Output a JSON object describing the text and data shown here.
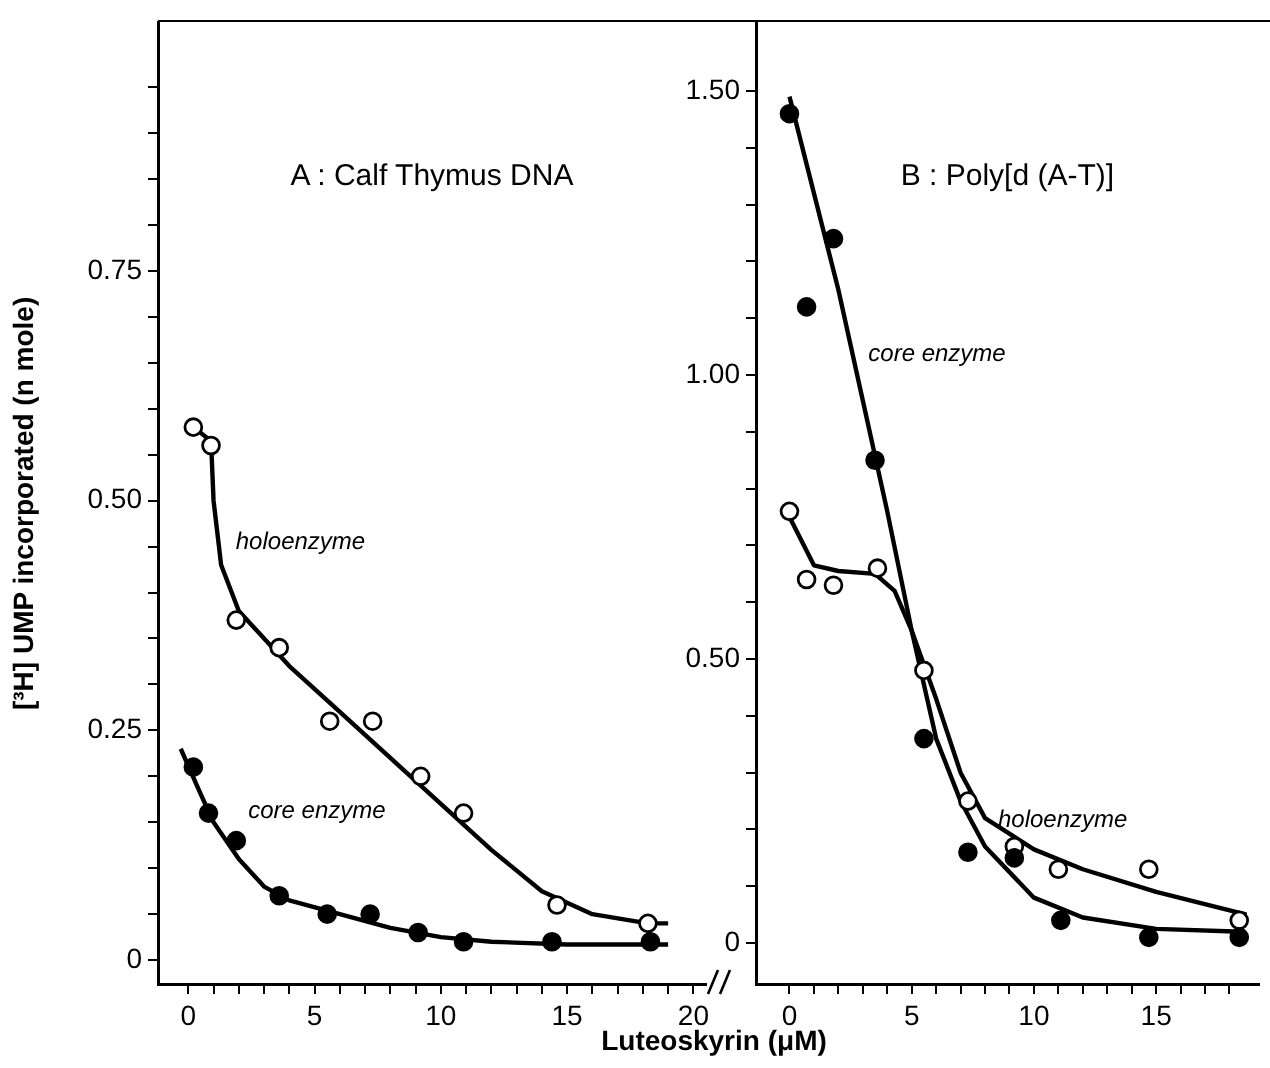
{
  "chart_data": [
    {
      "type": "scatter",
      "title": "A : Calf Thymus DNA",
      "xlabel": "Luteoskyrin (μM)",
      "ylabel": "[³H] UMP incorporated (n mole)",
      "grid": false,
      "legend": false,
      "marker": "circle",
      "xlim": [
        -1.2,
        20.5
      ],
      "ylim": [
        -0.026,
        1.02
      ],
      "xticks": [
        0,
        {
          "value": 1,
          "label": null
        },
        {
          "value": 2,
          "label": null
        },
        {
          "value": 3,
          "label": null
        },
        {
          "value": 4,
          "label": null
        },
        5,
        {
          "value": 6,
          "label": null
        },
        {
          "value": 7,
          "label": null
        },
        {
          "value": 8,
          "label": null
        },
        {
          "value": 9,
          "label": null
        },
        10,
        {
          "value": 11,
          "label": null
        },
        {
          "value": 12,
          "label": null
        },
        {
          "value": 13,
          "label": null
        },
        {
          "value": 14,
          "label": null
        },
        15,
        {
          "value": 16,
          "label": null
        },
        {
          "value": 17,
          "label": null
        },
        {
          "value": 18,
          "label": null
        },
        {
          "value": 19,
          "label": null
        },
        20
      ],
      "yticks": [
        0,
        {
          "value": 0.05,
          "label": null
        },
        {
          "value": 0.1,
          "label": null
        },
        {
          "value": 0.15,
          "label": null
        },
        {
          "value": 0.2,
          "label": null
        },
        {
          "value": 0.25,
          "label": "0.25"
        },
        {
          "value": 0.3,
          "label": null
        },
        {
          "value": 0.35,
          "label": null
        },
        {
          "value": 0.4,
          "label": null
        },
        {
          "value": 0.45,
          "label": null
        },
        {
          "value": 0.5,
          "label": "0.50"
        },
        {
          "value": 0.55,
          "label": null
        },
        {
          "value": 0.6,
          "label": null
        },
        {
          "value": 0.65,
          "label": null
        },
        {
          "value": 0.7,
          "label": null
        },
        {
          "value": 0.75,
          "label": "0.75"
        },
        {
          "value": 0.8,
          "label": null
        },
        {
          "value": 0.85,
          "label": null
        },
        {
          "value": 0.9,
          "label": null
        },
        {
          "value": 0.95,
          "label": null
        }
      ],
      "series": [
        {
          "type": "line",
          "marker": "none",
          "color": "#000000",
          "x": [
            0.2,
            0.9,
            1.0,
            1.3,
            2,
            4,
            6,
            8,
            10,
            12,
            14,
            16,
            18.2,
            19
          ],
          "values": [
            0.58,
            0.565,
            0.5,
            0.43,
            0.38,
            0.32,
            0.27,
            0.22,
            0.17,
            0.12,
            0.075,
            0.05,
            0.04,
            0.04
          ]
        },
        {
          "type": "line",
          "marker": "none",
          "color": "#000000",
          "x": [
            -0.3,
            0.5,
            1,
            2,
            3,
            4,
            6,
            8,
            10,
            12,
            15,
            19
          ],
          "values": [
            0.23,
            0.18,
            0.15,
            0.11,
            0.08,
            0.065,
            0.05,
            0.035,
            0.025,
            0.02,
            0.017,
            0.017
          ]
        },
        {
          "type": "scatter",
          "name": "holoenzyme",
          "color": "#ffffff",
          "x": [
            0.2,
            0.9,
            1.9,
            3.6,
            5.6,
            7.3,
            9.2,
            10.9,
            14.6,
            18.2
          ],
          "values": [
            0.58,
            0.56,
            0.37,
            0.34,
            0.26,
            0.26,
            0.2,
            0.16,
            0.06,
            0.04
          ]
        },
        {
          "type": "scatter",
          "name": "core enzyme",
          "color": "#000000",
          "x": [
            0.2,
            0.8,
            1.9,
            3.6,
            5.5,
            7.2,
            9.1,
            10.9,
            14.4,
            18.3
          ],
          "values": [
            0.21,
            0.16,
            0.13,
            0.07,
            0.05,
            0.05,
            0.03,
            0.02,
            0.02,
            0.02
          ]
        }
      ]
    },
    {
      "type": "scatter",
      "title": "B : Poly[d (A-T)]",
      "grid": false,
      "legend": false,
      "marker": "circle",
      "xlim": [
        -1.37,
        19.2
      ],
      "ylim": [
        -0.072,
        1.62
      ],
      "xticks": [
        0,
        {
          "value": 1,
          "label": null
        },
        {
          "value": 2,
          "label": null
        },
        {
          "value": 3,
          "label": null
        },
        {
          "value": 4,
          "label": null
        },
        5,
        {
          "value": 6,
          "label": null
        },
        {
          "value": 7,
          "label": null
        },
        {
          "value": 8,
          "label": null
        },
        {
          "value": 9,
          "label": null
        },
        10,
        {
          "value": 11,
          "label": null
        },
        {
          "value": 12,
          "label": null
        },
        {
          "value": 13,
          "label": null
        },
        {
          "value": 14,
          "label": null
        },
        15,
        {
          "value": 16,
          "label": null
        },
        {
          "value": 17,
          "label": null
        },
        {
          "value": 18,
          "label": null
        }
      ],
      "yticks": [
        0,
        {
          "value": 0.1,
          "label": null
        },
        {
          "value": 0.2,
          "label": null
        },
        {
          "value": 0.3,
          "label": null
        },
        {
          "value": 0.4,
          "label": null
        },
        {
          "value": 0.5,
          "label": "0.50"
        },
        {
          "value": 0.6,
          "label": null
        },
        {
          "value": 0.7,
          "label": null
        },
        {
          "value": 0.8,
          "label": null
        },
        {
          "value": 0.9,
          "label": null
        },
        {
          "value": 1,
          "label": "1.00"
        },
        {
          "value": 1.1,
          "label": null
        },
        {
          "value": 1.2,
          "label": null
        },
        {
          "value": 1.3,
          "label": null
        },
        {
          "value": 1.4,
          "label": null
        },
        {
          "value": 1.5,
          "label": "1.50"
        }
      ],
      "series": [
        {
          "type": "line",
          "marker": "none",
          "color": "#000000",
          "x": [
            0,
            2,
            4,
            5,
            6,
            7,
            8,
            10,
            12,
            15,
            18.5
          ],
          "values": [
            1.49,
            1.15,
            0.76,
            0.55,
            0.36,
            0.25,
            0.17,
            0.08,
            0.045,
            0.025,
            0.02
          ]
        },
        {
          "type": "line",
          "marker": "none",
          "color": "#000000",
          "x": [
            0,
            1,
            2,
            3.5,
            4.3,
            5,
            6,
            7,
            8,
            10,
            12,
            15,
            18.7
          ],
          "values": [
            0.75,
            0.665,
            0.655,
            0.65,
            0.62,
            0.55,
            0.43,
            0.3,
            0.22,
            0.165,
            0.13,
            0.09,
            0.05
          ]
        },
        {
          "type": "scatter",
          "name": "core enzyme",
          "color": "#000000",
          "x": [
            0,
            0.7,
            1.8,
            3.5,
            5.5,
            7.3,
            9.2,
            11.1,
            14.7,
            18.4
          ],
          "values": [
            1.46,
            1.12,
            1.24,
            0.85,
            0.36,
            0.16,
            0.15,
            0.04,
            0.01,
            0.01
          ]
        },
        {
          "type": "scatter",
          "name": "holoenzyme",
          "color": "#ffffff",
          "x": [
            0,
            0.7,
            1.8,
            3.6,
            5.5,
            7.3,
            9.2,
            11.0,
            14.7,
            18.4
          ],
          "values": [
            0.76,
            0.64,
            0.63,
            0.66,
            0.48,
            0.25,
            0.17,
            0.13,
            0.13,
            0.04
          ]
        }
      ]
    }
  ]
}
